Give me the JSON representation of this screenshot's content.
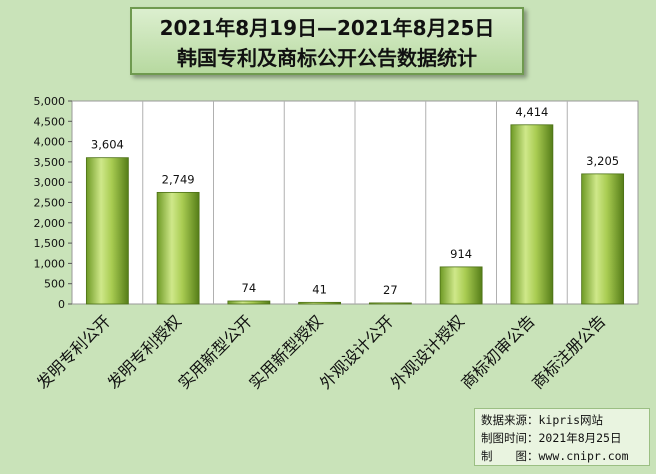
{
  "title": {
    "line1": "2021年8月19日—2021年8月25日",
    "line2": "韩国专利及商标公开公告数据统计"
  },
  "source_note": {
    "line1": "数据来源：kipris网站",
    "line2": "制图时间：2021年8月25日",
    "line3": "制　　图：www.cnipr.com"
  },
  "colors": {
    "background": "#c9e3b9",
    "plot_area": "#ffffff",
    "bar_light": "#cfe88a",
    "bar_dark": "#5f8a1e",
    "grid": "#b0b0b0"
  },
  "chart_data": {
    "type": "bar",
    "title": "2021年8月19日—2021年8月25日 韩国专利及商标公开公告数据统计",
    "categories": [
      "发明专利公开",
      "发明专利授权",
      "实用新型公开",
      "实用新型授权",
      "外观设计公开",
      "外观设计授权",
      "商标初审公告",
      "商标注册公告"
    ],
    "values": [
      3604,
      2749,
      74,
      41,
      27,
      914,
      4414,
      3205
    ],
    "value_labels": [
      "3,604",
      "2,749",
      "74",
      "41",
      "27",
      "914",
      "4,414",
      "3,205"
    ],
    "ylim": [
      0,
      5000
    ],
    "yticks": [
      0,
      500,
      1000,
      1500,
      2000,
      2500,
      3000,
      3500,
      4000,
      4500,
      5000
    ],
    "ytick_labels": [
      "0",
      "500",
      "1,000",
      "1,500",
      "2,000",
      "2,500",
      "3,000",
      "3,500",
      "4,000",
      "4,500",
      "5,000"
    ],
    "grid": "vertical category separators",
    "xlabel": "",
    "ylabel": ""
  }
}
